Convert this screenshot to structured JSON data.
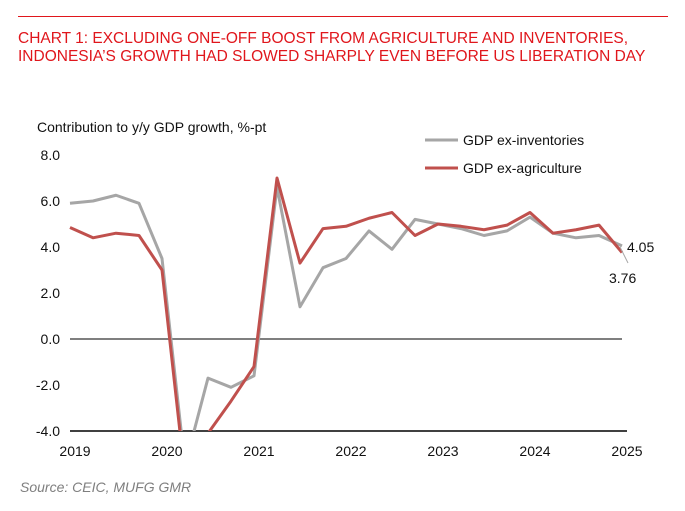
{
  "header": {
    "title": "CHART 1: EXCLUDING ONE-OFF BOOST FROM AGRICULTURE AND INVENTORIES, INDONESIA’S GROWTH HAD SLOWED SHARPLY EVEN BEFORE US LIBERATION DAY"
  },
  "footer": {
    "source": "Source: CEIC, MUFG GMR"
  },
  "chart_data": {
    "type": "line",
    "title": "",
    "ylabel": "Contribution to y/y GDP growth,  %-pt",
    "xlabel": "",
    "ylim": [
      -4,
      8
    ],
    "yticks": [
      "8.0",
      "6.0",
      "4.0",
      "2.0",
      "0.0",
      "-2.0",
      "-4.0"
    ],
    "ytick_values": [
      8,
      6,
      4,
      2,
      0,
      -2,
      -4
    ],
    "xticks": [
      "2019",
      "2020",
      "2021",
      "2022",
      "2023",
      "2024",
      "2025"
    ],
    "x": [
      "2019Q1",
      "2019Q2",
      "2019Q3",
      "2019Q4",
      "2020Q1",
      "2020Q2",
      "2020Q3",
      "2020Q4",
      "2021Q1",
      "2021Q2",
      "2021Q3",
      "2021Q4",
      "2022Q1",
      "2022Q2",
      "2022Q3",
      "2022Q4",
      "2023Q1",
      "2023Q2",
      "2023Q3",
      "2023Q4",
      "2024Q1",
      "2024Q2",
      "2024Q3",
      "2024Q4",
      "2025Q1"
    ],
    "grid": false,
    "legend": "top-right",
    "series": [
      {
        "name": "GDP ex-inventories",
        "color": "#a6a6a6",
        "values": [
          5.9,
          6.0,
          6.25,
          5.9,
          3.5,
          -5.5,
          -1.7,
          -2.1,
          -1.6,
          6.6,
          1.4,
          3.1,
          3.5,
          4.7,
          3.9,
          5.2,
          5.0,
          4.8,
          4.5,
          4.7,
          5.3,
          4.6,
          4.4,
          4.5,
          4.05
        ],
        "end_label": "4.05"
      },
      {
        "name": "GDP ex-agriculture",
        "color": "#c0504d",
        "values": [
          4.85,
          4.4,
          4.6,
          4.5,
          3.0,
          -6.0,
          -4.1,
          -2.7,
          -1.2,
          7.0,
          3.3,
          4.8,
          4.9,
          5.25,
          5.5,
          4.5,
          5.0,
          4.9,
          4.75,
          4.95,
          5.5,
          4.6,
          4.75,
          4.95,
          3.76
        ],
        "end_label": "3.76"
      }
    ]
  }
}
